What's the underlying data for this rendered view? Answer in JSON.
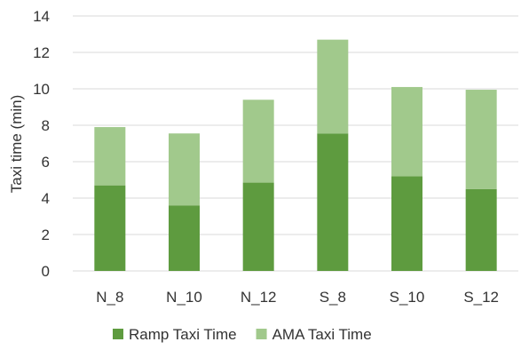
{
  "chart_data": {
    "type": "bar",
    "stacked": true,
    "categories": [
      "N_8",
      "N_10",
      "N_12",
      "S_8",
      "S_10",
      "S_12"
    ],
    "series": [
      {
        "name": "Ramp Taxi Time",
        "values": [
          4.7,
          3.6,
          4.85,
          7.55,
          5.2,
          4.5
        ],
        "color": "#5e9b3f"
      },
      {
        "name": "AMA Taxi Time",
        "values": [
          3.2,
          3.95,
          4.55,
          5.15,
          4.9,
          5.45
        ],
        "color": "#a1c98c"
      }
    ],
    "title": "",
    "xlabel": "",
    "ylabel": "Taxi time (min)",
    "ylim": [
      0,
      14
    ],
    "yticks": [
      0,
      2,
      4,
      6,
      8,
      10,
      12,
      14
    ],
    "grid": true,
    "legend": "bottom"
  }
}
